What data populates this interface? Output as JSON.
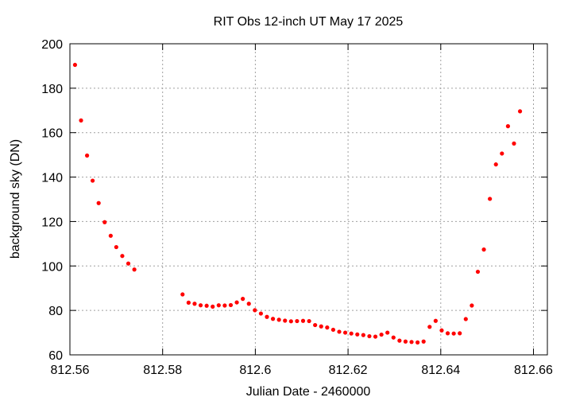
{
  "chart_data": {
    "type": "scatter",
    "title": "RIT Obs 12-inch UT May 17 2025",
    "xlabel": "Julian Date - 2460000",
    "ylabel": "background sky (DN)",
    "xlim": [
      812.56,
      812.663
    ],
    "ylim": [
      60,
      200
    ],
    "xticks": [
      812.56,
      812.58,
      812.6,
      812.62,
      812.64,
      812.66
    ],
    "xtick_labels": [
      "812.56",
      "812.58",
      "812.6",
      "812.62",
      "812.64",
      "812.66"
    ],
    "yticks": [
      60,
      80,
      100,
      120,
      140,
      160,
      180,
      200
    ],
    "ytick_labels": [
      "60",
      "80",
      "100",
      "120",
      "140",
      "160",
      "180",
      "200"
    ],
    "grid": true,
    "marker_color": "#ff0000",
    "points": [
      [
        812.5611,
        190.5
      ],
      [
        812.5624,
        165.5
      ],
      [
        812.5637,
        149.7
      ],
      [
        812.5649,
        138.4
      ],
      [
        812.5662,
        128.3
      ],
      [
        812.5675,
        119.7
      ],
      [
        812.5688,
        113.6
      ],
      [
        812.57,
        108.5
      ],
      [
        812.5713,
        104.5
      ],
      [
        812.5726,
        101.1
      ],
      [
        812.5739,
        98.4
      ],
      [
        812.5843,
        87.2
      ],
      [
        812.5856,
        83.5
      ],
      [
        812.5869,
        83.0
      ],
      [
        812.5882,
        82.3
      ],
      [
        812.5895,
        82.1
      ],
      [
        812.5908,
        81.7
      ],
      [
        812.5921,
        82.3
      ],
      [
        812.5934,
        82.2
      ],
      [
        812.5947,
        82.4
      ],
      [
        812.596,
        83.6
      ],
      [
        812.5973,
        85.2
      ],
      [
        812.5986,
        83.0
      ],
      [
        812.5999,
        80.1
      ],
      [
        812.6012,
        78.6
      ],
      [
        812.6025,
        77.1
      ],
      [
        812.6038,
        76.2
      ],
      [
        812.6051,
        75.8
      ],
      [
        812.6064,
        75.4
      ],
      [
        812.6077,
        75.1
      ],
      [
        812.609,
        75.2
      ],
      [
        812.6103,
        75.3
      ],
      [
        812.6116,
        75.2
      ],
      [
        812.6129,
        73.4
      ],
      [
        812.6142,
        72.8
      ],
      [
        812.6155,
        72.3
      ],
      [
        812.6168,
        71.3
      ],
      [
        812.6181,
        70.4
      ],
      [
        812.6194,
        70.0
      ],
      [
        812.6207,
        69.6
      ],
      [
        812.622,
        69.2
      ],
      [
        812.6233,
        68.9
      ],
      [
        812.6246,
        68.4
      ],
      [
        812.6259,
        68.2
      ],
      [
        812.6272,
        69.1
      ],
      [
        812.6285,
        70.0
      ],
      [
        812.6298,
        67.8
      ],
      [
        812.6311,
        66.4
      ],
      [
        812.6324,
        66.0
      ],
      [
        812.6337,
        65.8
      ],
      [
        812.635,
        65.6
      ],
      [
        812.6363,
        66.0
      ],
      [
        812.6376,
        72.6
      ],
      [
        812.6389,
        75.3
      ],
      [
        812.6402,
        71.0
      ],
      [
        812.6415,
        69.7
      ],
      [
        812.6428,
        69.6
      ],
      [
        812.6441,
        69.7
      ],
      [
        812.6454,
        76.1
      ],
      [
        812.6467,
        82.2
      ],
      [
        812.648,
        97.4
      ],
      [
        812.6493,
        107.4
      ],
      [
        812.6506,
        130.2
      ],
      [
        812.6519,
        145.7
      ],
      [
        812.6532,
        150.6
      ],
      [
        812.6545,
        162.9
      ],
      [
        812.6558,
        155.1
      ],
      [
        812.6571,
        169.6
      ]
    ]
  }
}
